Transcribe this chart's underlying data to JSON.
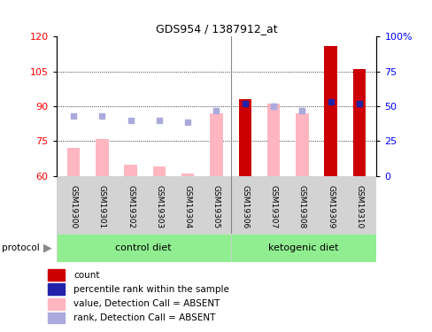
{
  "title": "GDS954 / 1387912_at",
  "samples": [
    "GSM19300",
    "GSM19301",
    "GSM19302",
    "GSM19303",
    "GSM19304",
    "GSM19305",
    "GSM19306",
    "GSM19307",
    "GSM19308",
    "GSM19309",
    "GSM19310"
  ],
  "ylim_left": [
    60,
    120
  ],
  "ylim_right": [
    0,
    100
  ],
  "yticks_left": [
    60,
    75,
    90,
    105,
    120
  ],
  "yticks_right": [
    0,
    25,
    50,
    75,
    100
  ],
  "ytick_labels_right": [
    "0",
    "25",
    "50",
    "75",
    "100%"
  ],
  "pink_bars": [
    72,
    76,
    65,
    64,
    61,
    87,
    93,
    91,
    87,
    116,
    106
  ],
  "blue_light_dots": [
    86,
    86,
    84,
    84,
    83,
    88,
    91,
    90,
    88,
    92,
    91
  ],
  "absent_indices": [
    0,
    1,
    2,
    3,
    4,
    5,
    7,
    8
  ],
  "present_indices": [
    6,
    9,
    10
  ],
  "red_bars_present": [
    93,
    null,
    null,
    116,
    106
  ],
  "blue_dark_present": [
    91,
    null,
    null,
    92,
    91
  ],
  "present_map": [
    6,
    7,
    8,
    9,
    10
  ],
  "group_labels": [
    "control diet",
    "ketogenic diet"
  ],
  "bar_width": 0.45,
  "pink_color": "#ffb6c1",
  "red_color": "#cc0000",
  "blue_light_color": "#aaaadd",
  "blue_dark_color": "#2222aa",
  "gray_bg": "#d3d3d3",
  "green_bg": "#90ee90",
  "legend_items": [
    "count",
    "percentile rank within the sample",
    "value, Detection Call = ABSENT",
    "rank, Detection Call = ABSENT"
  ],
  "legend_colors": [
    "#cc0000",
    "#2222aa",
    "#ffb6c1",
    "#aaaadd"
  ]
}
